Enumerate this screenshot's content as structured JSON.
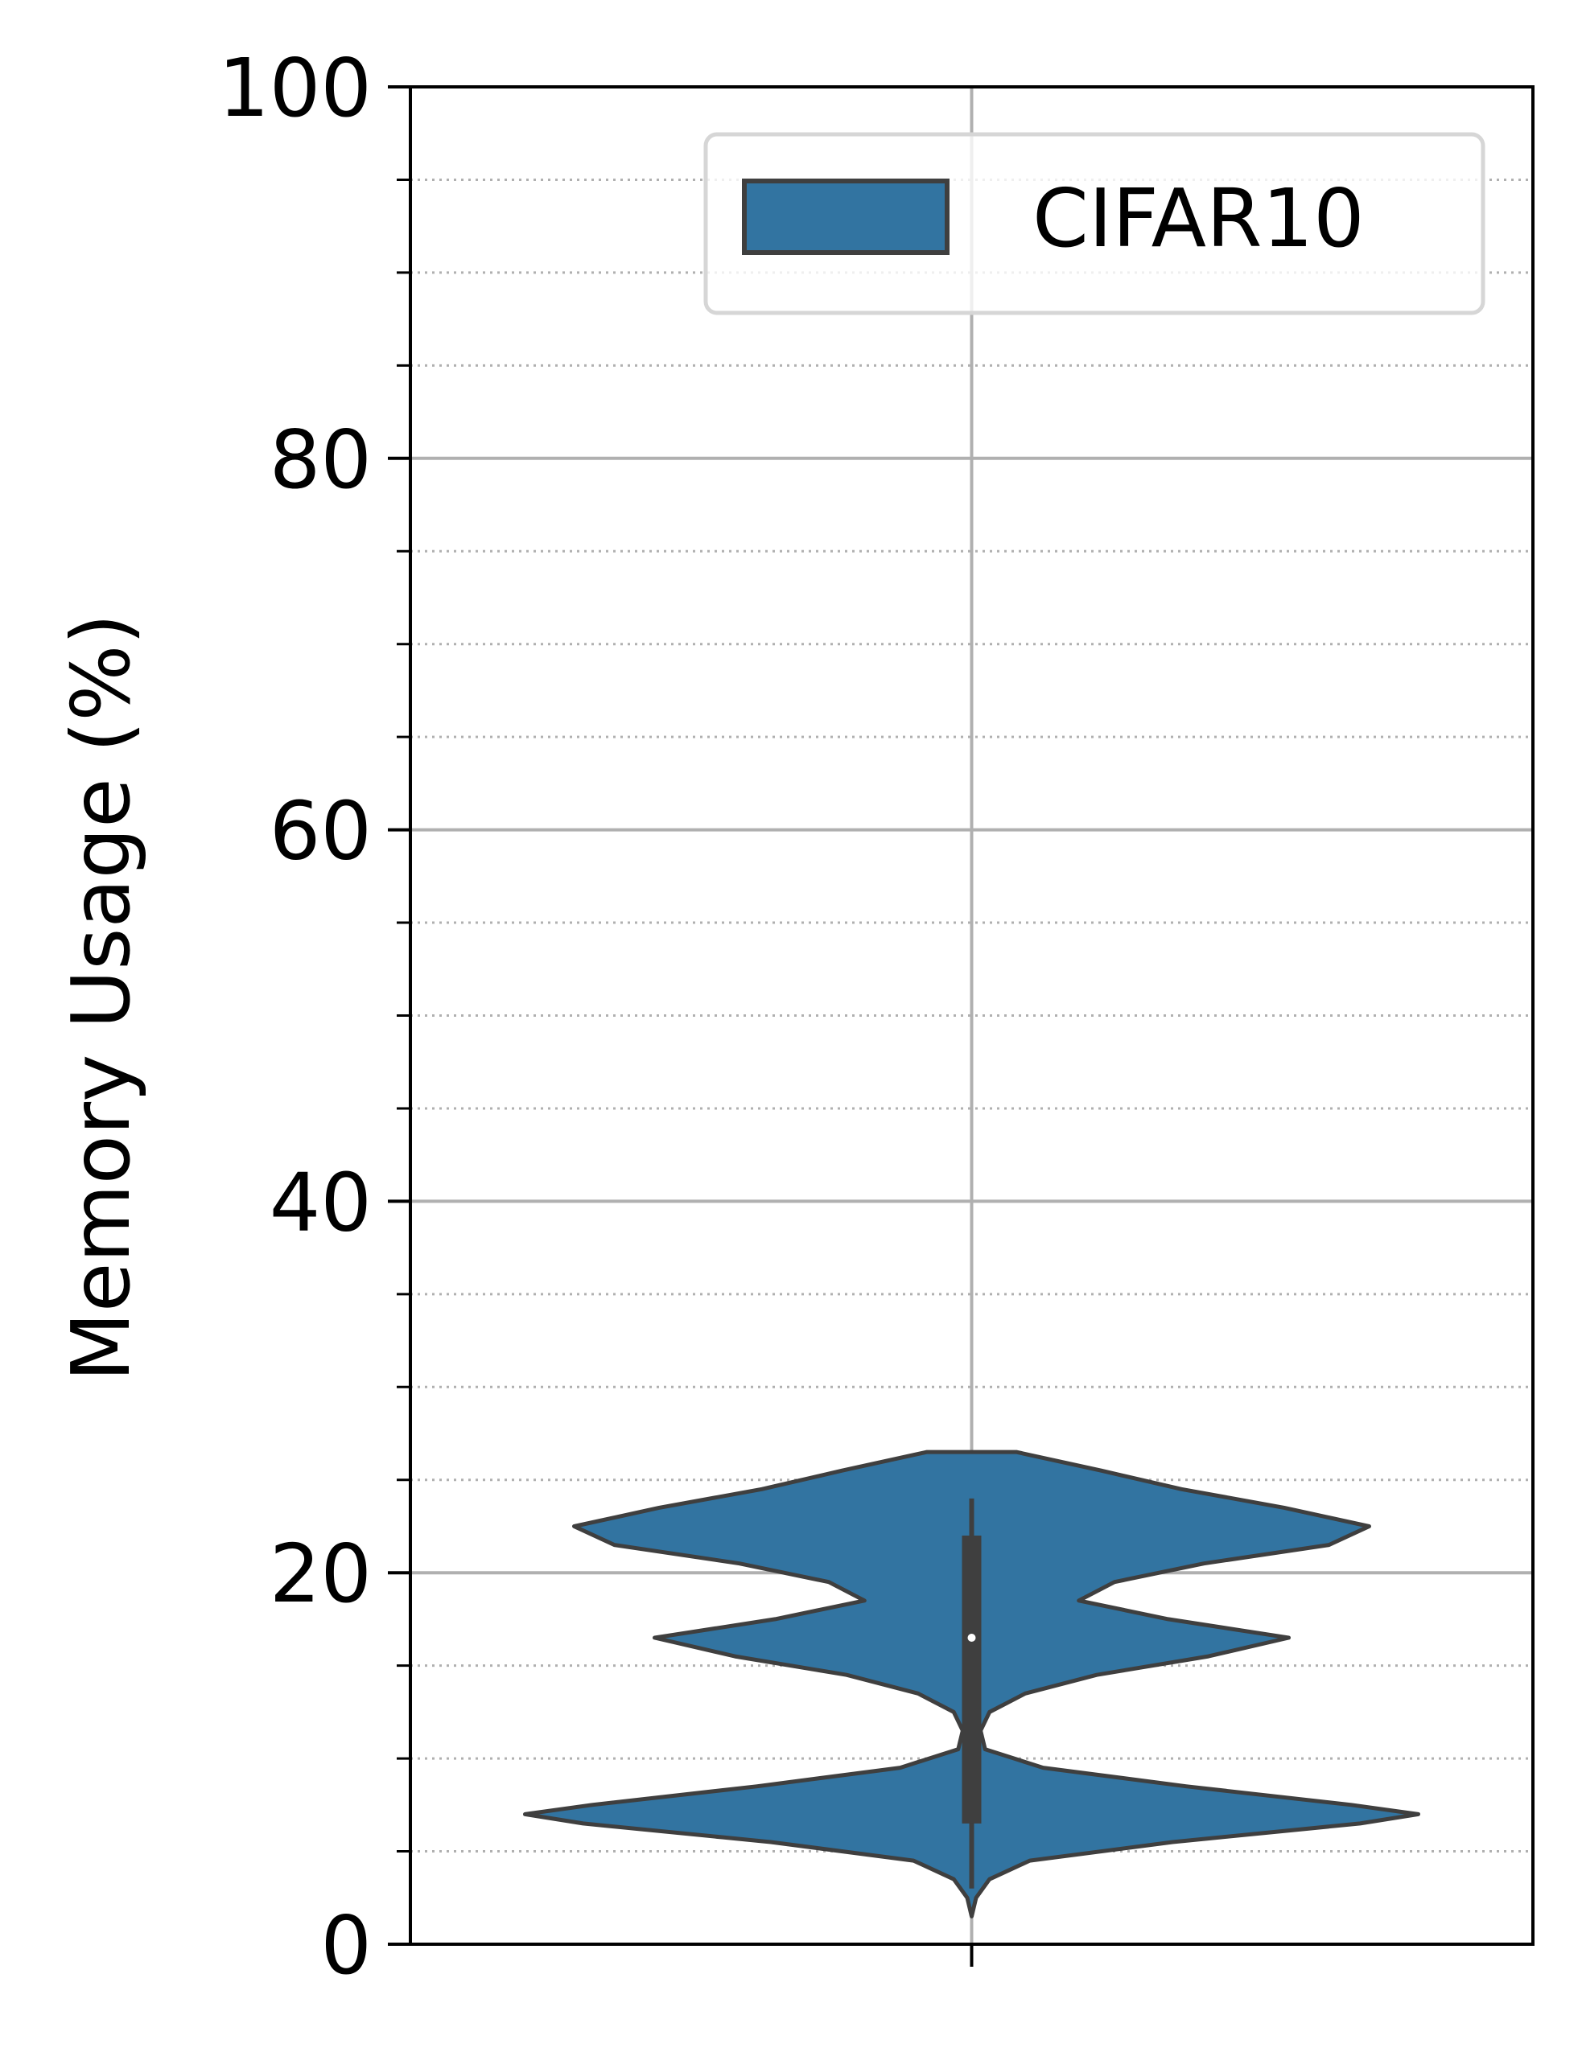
{
  "chart_data": {
    "type": "violin",
    "ylabel": "Memory Usage (%)",
    "xlabel": "",
    "ylim": [
      0,
      100
    ],
    "yticks": [
      0,
      20,
      40,
      60,
      80,
      100
    ],
    "ytick_labels": [
      "0",
      "20",
      "40",
      "60",
      "80",
      "100"
    ],
    "minor_ytick_step": 5,
    "grid": {
      "major": true,
      "minor": "dotted"
    },
    "legend": {
      "position": "top-right",
      "entries": [
        "CIFAR10"
      ]
    },
    "series": [
      {
        "name": "CIFAR10",
        "color": "#3274a1",
        "edge_color": "#3f3f3f",
        "range": [
          3,
          26.5
        ],
        "quartiles": {
          "q1": 6.5,
          "median": 16.5,
          "q3": 22
        },
        "whiskers": [
          3,
          24
        ],
        "density_profile": [
          [
            1.5,
            0.0
          ],
          [
            2.5,
            0.01
          ],
          [
            3.5,
            0.04
          ],
          [
            4.5,
            0.13
          ],
          [
            5.5,
            0.45
          ],
          [
            6.5,
            0.87
          ],
          [
            7.0,
            1.0
          ],
          [
            7.5,
            0.85
          ],
          [
            8.5,
            0.48
          ],
          [
            9.5,
            0.16
          ],
          [
            10.5,
            0.03
          ],
          [
            11.5,
            0.02
          ],
          [
            12.5,
            0.04
          ],
          [
            13.5,
            0.12
          ],
          [
            14.5,
            0.28
          ],
          [
            15.5,
            0.53
          ],
          [
            16.5,
            0.71
          ],
          [
            17.5,
            0.44
          ],
          [
            18.5,
            0.24
          ],
          [
            19.5,
            0.32
          ],
          [
            20.5,
            0.52
          ],
          [
            21.5,
            0.8
          ],
          [
            22.5,
            0.89
          ],
          [
            23.5,
            0.7
          ],
          [
            24.5,
            0.47
          ],
          [
            25.5,
            0.29
          ],
          [
            26.5,
            0.1
          ]
        ]
      }
    ]
  }
}
